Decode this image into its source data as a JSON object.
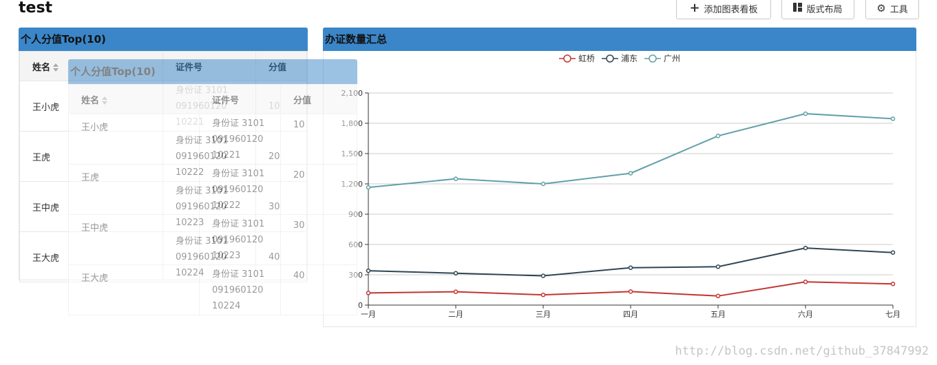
{
  "page": {
    "title": "test"
  },
  "toolbar": {
    "add_board": "添加图表看板",
    "layout": "版式布局",
    "tools": "工具"
  },
  "left_panel": {
    "title": "个人分值Top(10)",
    "columns": [
      "姓名",
      "证件号",
      "分值"
    ],
    "rows": [
      {
        "name": "王小虎",
        "id_line1": "身份证 3101",
        "id_line2": "091960120",
        "id_line3": "10221",
        "score": "10"
      },
      {
        "name": "王虎",
        "id_line1": "身份证 3101",
        "id_line2": "091960120",
        "id_line3": "10222",
        "score": "20"
      },
      {
        "name": "王中虎",
        "id_line1": "身份证 3101",
        "id_line2": "091960120",
        "id_line3": "10223",
        "score": "30"
      },
      {
        "name": "王大虎",
        "id_line1": "身份证 3101",
        "id_line2": "091960120",
        "id_line3": "10224",
        "score": "40"
      }
    ]
  },
  "ghost_panel": {
    "title": "个人分值Top(10)",
    "columns": [
      "姓名",
      "证件号",
      "分值"
    ],
    "rows": [
      {
        "name": "王小虎",
        "id_line1": "身份证 3101",
        "id_line2": "091960120",
        "id_line3": "10221",
        "score": "10"
      },
      {
        "name": "王虎",
        "id_line1": "身份证 3101",
        "id_line2": "091960120",
        "id_line3": "10222",
        "score": "20"
      },
      {
        "name": "王中虎",
        "id_line1": "身份证 3101",
        "id_line2": "091960120",
        "id_line3": "10223",
        "score": "30"
      },
      {
        "name": "王大虎",
        "id_line1": "身份证 3101",
        "id_line2": "091960120",
        "id_line3": "10224",
        "score": "40"
      }
    ]
  },
  "right_panel": {
    "title": "办证数量汇总"
  },
  "watermark": "http://blog.csdn.net/github_37847992",
  "colors": {
    "header": "#3a86c8",
    "hongqiao": "#c23531",
    "pudong": "#2f4554",
    "guangzhou": "#61a0a8"
  },
  "chart_data": {
    "type": "line",
    "categories": [
      "一月",
      "二月",
      "三月",
      "四月",
      "五月",
      "六月",
      "七月"
    ],
    "ylim": [
      0,
      2100
    ],
    "yticks": [
      "0",
      "300",
      "600",
      "900",
      "1,200",
      "1,500",
      "1,800",
      "2,100"
    ],
    "legend_position": "top-center",
    "grid": true,
    "series": [
      {
        "name": "虹桥",
        "color": "#c23531",
        "values": [
          120,
          132,
          101,
          134,
          90,
          230,
          210
        ]
      },
      {
        "name": "浦东",
        "color": "#2f4554",
        "values": [
          340,
          315,
          290,
          370,
          380,
          565,
          520
        ]
      },
      {
        "name": "广州",
        "color": "#61a0a8",
        "values": [
          1165,
          1250,
          1200,
          1305,
          1675,
          1895,
          1845
        ]
      }
    ]
  }
}
